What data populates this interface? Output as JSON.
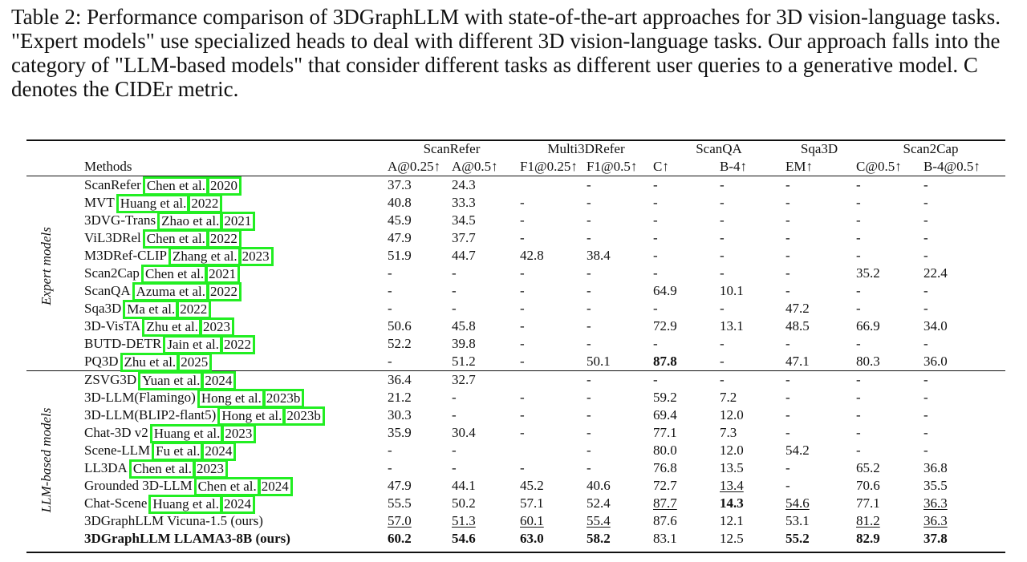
{
  "caption": "Table 2: Performance comparison of 3DGraphLLM with state-of-the-art approaches for 3D vision-language tasks. \"Expert models\" use specialized heads to deal with different 3D vision-language tasks. Our approach falls into the category of \"LLM-based models\" that consider different tasks as different user queries to a generative model. C denotes the CIDEr metric.",
  "header": {
    "datasets": [
      "ScanRefer",
      "Multi3DRefer",
      "ScanQA",
      "Sqa3D",
      "Scan2Cap"
    ],
    "methods_label": "Methods",
    "metrics": [
      "A@0.25↑",
      "A@0.5↑",
      "F1@0.25↑",
      "F1@0.5↑",
      "C↑",
      "B-4↑",
      "EM↑",
      "C@0.5↑",
      "B-4@0.5↑"
    ]
  },
  "groups": [
    "Expert models",
    "LLM-based models"
  ],
  "rows": [
    {
      "method": "ScanRefer",
      "cite": [
        "Chen et al.",
        "2020"
      ],
      "cells": [
        "37.3",
        "24.3",
        "",
        "-",
        "-",
        "-",
        "-",
        "-",
        "-"
      ]
    },
    {
      "method": "MVT",
      "cite": [
        "Huang et al.",
        "2022"
      ],
      "cells": [
        "40.8",
        "33.3",
        "-",
        "-",
        "-",
        "-",
        "-",
        "-",
        "-"
      ]
    },
    {
      "method": "3DVG-Trans",
      "cite": [
        "Zhao et al.",
        "2021"
      ],
      "cells": [
        "45.9",
        "34.5",
        "-",
        "-",
        "-",
        "-",
        "-",
        "-",
        "-"
      ]
    },
    {
      "method": "ViL3DRel",
      "cite": [
        "Chen et al.",
        "2022"
      ],
      "cells": [
        "47.9",
        "37.7",
        "-",
        "-",
        "-",
        "-",
        "-",
        "-",
        "-"
      ]
    },
    {
      "method": "M3DRef-CLIP",
      "cite": [
        "Zhang et al.",
        "2023"
      ],
      "cells": [
        "51.9",
        "44.7",
        "42.8",
        "38.4",
        "-",
        "-",
        "-",
        "-",
        "-"
      ]
    },
    {
      "method": "Scan2Cap",
      "cite": [
        "Chen et al.",
        "2021"
      ],
      "cells": [
        "-",
        "-",
        "-",
        "-",
        "-",
        "-",
        "-",
        "35.2",
        "22.4"
      ]
    },
    {
      "method": "ScanQA",
      "cite": [
        "Azuma et al.",
        "2022"
      ],
      "cells": [
        "-",
        "-",
        "-",
        "-",
        "64.9",
        "10.1",
        "-",
        "-",
        "-"
      ]
    },
    {
      "method": "Sqa3D",
      "cite": [
        "Ma et al.",
        "2022"
      ],
      "cells": [
        "-",
        "-",
        "-",
        "-",
        "-",
        "-",
        "47.2",
        "-",
        "-"
      ]
    },
    {
      "method": "3D-VisTA",
      "cite": [
        "Zhu et al.",
        "2023"
      ],
      "cells": [
        "50.6",
        "45.8",
        "-",
        "-",
        "72.9",
        "13.1",
        "48.5",
        "66.9",
        "34.0"
      ]
    },
    {
      "method": "BUTD-DETR",
      "cite": [
        "Jain et al.",
        "2022"
      ],
      "cells": [
        "52.2",
        "39.8",
        "-",
        "-",
        "-",
        "-",
        "-",
        "-",
        "-"
      ]
    },
    {
      "method": "PQ3D",
      "cite": [
        "Zhu et al.",
        "2025"
      ],
      "cells": [
        "-",
        "51.2",
        "-",
        "50.1",
        "87.8",
        "-",
        "47.1",
        "80.3",
        "36.0"
      ],
      "bold": [
        4
      ]
    },
    {
      "method": "ZSVG3D",
      "cite": [
        "Yuan et al.",
        "2024"
      ],
      "cells": [
        "36.4",
        "32.7",
        "",
        "-",
        "-",
        "-",
        "-",
        "-",
        "-"
      ]
    },
    {
      "method": "3D-LLM(Flamingo)",
      "cite": [
        "Hong et al.",
        "2023b"
      ],
      "cells": [
        "21.2",
        "-",
        "-",
        "-",
        "59.2",
        "7.2",
        "-",
        "-",
        "-"
      ]
    },
    {
      "method": "3D-LLM(BLIP2-flant5)",
      "cite": [
        "Hong et al.",
        "2023b"
      ],
      "cells": [
        "30.3",
        "-",
        "-",
        "-",
        "69.4",
        "12.0",
        "-",
        "-",
        "-"
      ]
    },
    {
      "method": "Chat-3D v2",
      "cite": [
        "Huang et al.",
        "2023"
      ],
      "cells": [
        "35.9",
        "30.4",
        "-",
        "-",
        "77.1",
        "7.3",
        "-",
        "-",
        "-"
      ]
    },
    {
      "method": "Scene-LLM",
      "cite": [
        "Fu et al.",
        "2024"
      ],
      "cells": [
        "-",
        "-",
        "",
        "-",
        "80.0",
        "12.0",
        "54.2",
        "-",
        "-"
      ]
    },
    {
      "method": "LL3DA",
      "cite": [
        "Chen et al.",
        "2023"
      ],
      "cells": [
        "-",
        "-",
        "-",
        "-",
        "76.8",
        "13.5",
        "-",
        "65.2",
        "36.8"
      ]
    },
    {
      "method": "Grounded 3D-LLM",
      "cite": [
        "Chen et al.",
        "2024"
      ],
      "cells": [
        "47.9",
        "44.1",
        "45.2",
        "40.6",
        "72.7",
        "13.4",
        "-",
        "70.6",
        "35.5"
      ],
      "underline": [
        5
      ]
    },
    {
      "method": "Chat-Scene",
      "cite": [
        "Huang et al.",
        "2024"
      ],
      "cells": [
        "55.5",
        "50.2",
        "57.1",
        "52.4",
        "87.7",
        "14.3",
        "54.6",
        "77.1",
        "36.3"
      ],
      "bold": [
        5
      ],
      "underline": [
        4,
        6,
        8
      ]
    },
    {
      "method": "3DGraphLLM Vicuna-1.5 (ours)",
      "cite": [],
      "cells": [
        "57.0",
        "51.3",
        "60.1",
        "55.4",
        "87.6",
        "12.1",
        "53.1",
        "81.2",
        "36.3"
      ],
      "underline": [
        0,
        1,
        2,
        3,
        7,
        8
      ]
    },
    {
      "method": "3DGraphLLM LLAMA3-8B (ours)",
      "cite": [],
      "cells": [
        "60.2",
        "54.6",
        "63.0",
        "58.2",
        "83.1",
        "12.5",
        "55.2",
        "82.9",
        "37.8"
      ],
      "bold": [
        0,
        1,
        2,
        3,
        6,
        7,
        8
      ],
      "method_bold": true
    }
  ]
}
